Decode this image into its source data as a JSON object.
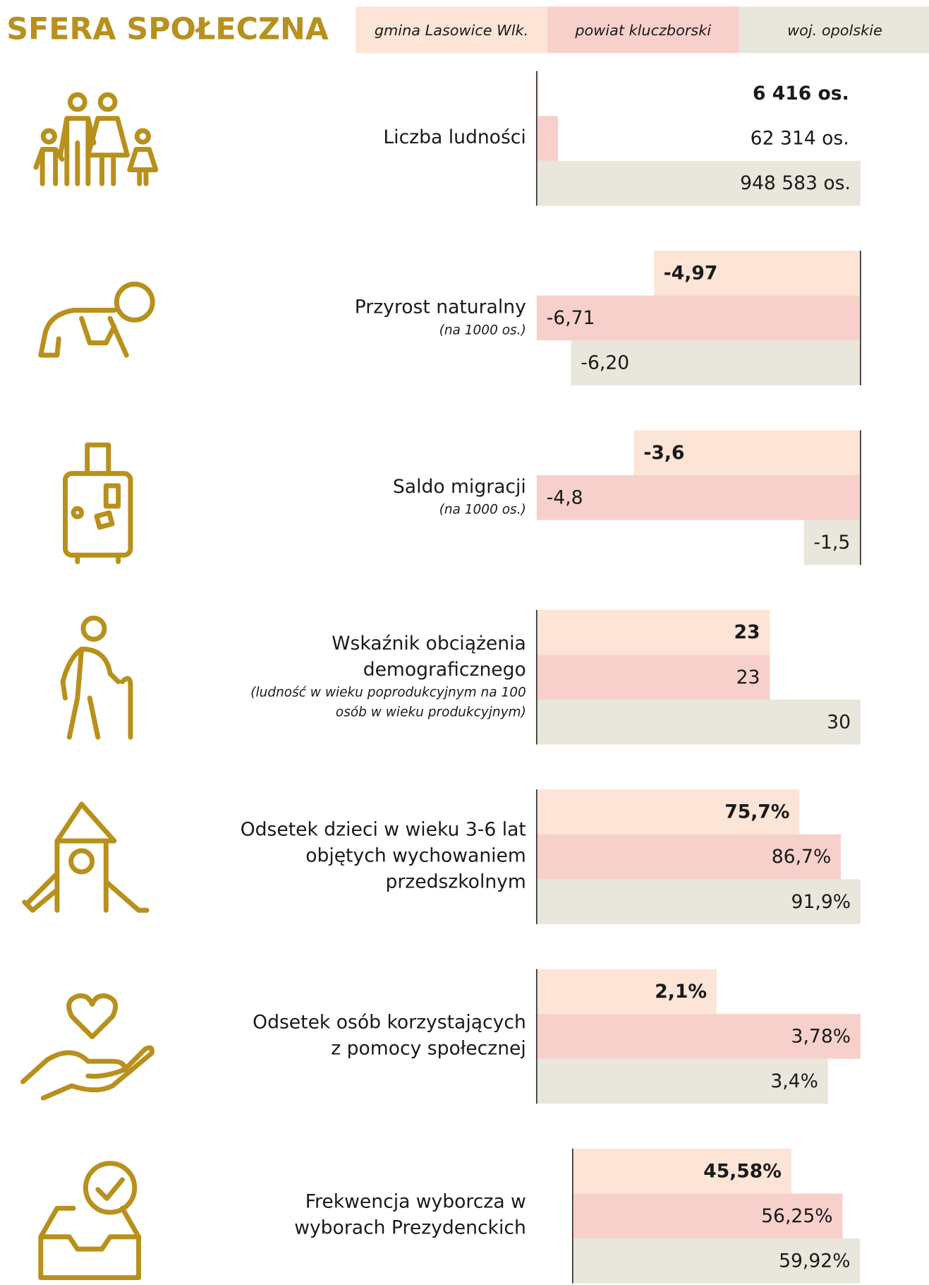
{
  "title": "SFERA SPOŁECZNA",
  "legend": {
    "names": [
      "gmina Lasowice Wlk.",
      "powiat kluczborski",
      "woj. opolskie"
    ],
    "colors": [
      "#fce4d6",
      "#f8d0cb",
      "#e9e6db"
    ]
  },
  "chart_data": [
    {
      "type": "bar",
      "title": [
        "Liczba ludności"
      ],
      "values": [
        6416,
        62314,
        948583
      ],
      "value_labels": [
        "6 416 os.",
        "62 314 os.",
        "948 583 os."
      ],
      "xlim": [
        0,
        948583
      ]
    },
    {
      "type": "bar",
      "title": [
        "Przyrost naturalny"
      ],
      "subtitle": [
        "(na 1000 os.)"
      ],
      "values": [
        -4.97,
        -6.71,
        -6.2
      ],
      "value_labels": [
        "-4,97",
        "-6,71",
        "-6,20"
      ],
      "xlim": [
        -6.71,
        -1.9
      ]
    },
    {
      "type": "bar",
      "title": [
        "Saldo migracji"
      ],
      "subtitle": [
        "(na 1000 os.)"
      ],
      "values": [
        -3.6,
        -4.8,
        -1.5
      ],
      "value_labels": [
        "-3,6",
        "-4,8",
        "-1,5"
      ],
      "xlim": [
        -4.8,
        -0.8
      ]
    },
    {
      "type": "bar",
      "title": [
        "Wskaźnik obciążenia",
        "demograficznego"
      ],
      "subtitle": [
        "(ludność w wieku poprodukcyjnym na 100",
        "osób w wieku produkcyjnym)"
      ],
      "values": [
        23,
        23,
        30
      ],
      "xlim": [
        5,
        30
      ]
    },
    {
      "type": "bar",
      "title": [
        "Odsetek dzieci w wieku 3-6 lat",
        "objętych wychowaniem",
        "przedszkolnym"
      ],
      "values": [
        75.7,
        86.7,
        91.9
      ],
      "value_labels": [
        "75,7%",
        "86,7%",
        "91,9%"
      ],
      "xlim": [
        6,
        91.9
      ]
    },
    {
      "type": "bar",
      "title": [
        "Odsetek osób korzystających",
        "z pomocy społecznej"
      ],
      "values": [
        2.1,
        3.78,
        3.4
      ],
      "value_labels": [
        "2,1%",
        "3,78%",
        "3,4%"
      ],
      "xlim": [
        0,
        3.78
      ]
    },
    {
      "type": "bar",
      "title": [
        "Frekwencja wyborcza w",
        "wyborach Prezydenckich"
      ],
      "values": [
        45.58,
        56.25,
        59.92
      ],
      "value_labels": [
        "45,58%",
        "56,25%",
        "59,92%"
      ],
      "xlim": [
        -7.5,
        60
      ]
    }
  ]
}
